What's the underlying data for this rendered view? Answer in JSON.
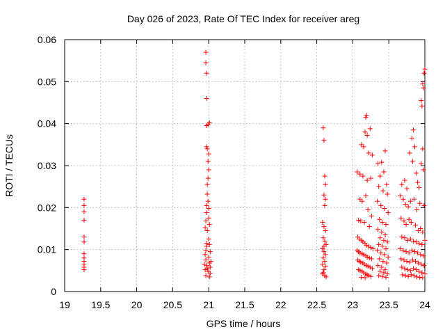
{
  "chart_data": {
    "type": "scatter",
    "title": "Day 026 of 2023, Rate Of TEC Index for receiver areg",
    "xlabel": "GPS time / hours",
    "ylabel": "ROTI / TECUs",
    "xlim": [
      19,
      24
    ],
    "ylim": [
      0,
      0.06
    ],
    "xticks": [
      "19",
      "19.5",
      "20",
      "20.5",
      "21",
      "21.5",
      "22",
      "22.5",
      "23",
      "23.5",
      "24"
    ],
    "yticks": [
      "0",
      "0.01",
      "0.02",
      "0.03",
      "0.04",
      "0.05",
      "0.06"
    ],
    "grid": true,
    "marker": "plus",
    "color": "#ff0000",
    "points": [
      [
        19.27,
        0.022
      ],
      [
        19.27,
        0.0205
      ],
      [
        19.27,
        0.019
      ],
      [
        19.27,
        0.017
      ],
      [
        19.27,
        0.013
      ],
      [
        19.27,
        0.0118
      ],
      [
        19.27,
        0.009
      ],
      [
        19.27,
        0.008
      ],
      [
        19.27,
        0.0072
      ],
      [
        19.27,
        0.0065
      ],
      [
        19.27,
        0.0058
      ],
      [
        19.27,
        0.0052
      ],
      [
        20.96,
        0.057
      ],
      [
        20.96,
        0.0545
      ],
      [
        20.97,
        0.052
      ],
      [
        20.97,
        0.046
      ],
      [
        20.97,
        0.0395
      ],
      [
        20.99,
        0.0398
      ],
      [
        21.01,
        0.0402
      ],
      [
        20.97,
        0.0345
      ],
      [
        20.98,
        0.034
      ],
      [
        21.0,
        0.0328
      ],
      [
        20.99,
        0.031
      ],
      [
        21.0,
        0.029
      ],
      [
        20.99,
        0.027
      ],
      [
        20.98,
        0.0255
      ],
      [
        20.98,
        0.0232
      ],
      [
        20.99,
        0.0215
      ],
      [
        20.97,
        0.0205
      ],
      [
        21.0,
        0.0198
      ],
      [
        20.97,
        0.0188
      ],
      [
        21.0,
        0.0175
      ],
      [
        20.96,
        0.0168
      ],
      [
        21.01,
        0.016
      ],
      [
        20.95,
        0.0152
      ],
      [
        20.98,
        0.0145
      ],
      [
        21.0,
        0.0125
      ],
      [
        21.01,
        0.0112
      ],
      [
        20.97,
        0.0108
      ],
      [
        20.96,
        0.0098
      ],
      [
        21.02,
        0.0095
      ],
      [
        20.95,
        0.0088
      ],
      [
        21.0,
        0.0082
      ],
      [
        20.96,
        0.0075
      ],
      [
        21.01,
        0.0068
      ],
      [
        20.97,
        0.0062
      ],
      [
        21.02,
        0.0058
      ],
      [
        20.95,
        0.0052
      ],
      [
        20.99,
        0.0048
      ],
      [
        21.02,
        0.0044
      ],
      [
        20.96,
        0.0038
      ],
      [
        21.01,
        0.0035
      ],
      [
        20.98,
        0.0055
      ],
      [
        20.94,
        0.0065
      ],
      [
        21.03,
        0.0072
      ],
      [
        20.97,
        0.0115
      ],
      [
        22.59,
        0.039
      ],
      [
        22.6,
        0.036
      ],
      [
        22.61,
        0.0275
      ],
      [
        22.62,
        0.0255
      ],
      [
        22.6,
        0.023
      ],
      [
        22.62,
        0.022
      ],
      [
        22.61,
        0.0205
      ],
      [
        22.58,
        0.0165
      ],
      [
        22.6,
        0.0155
      ],
      [
        22.62,
        0.0145
      ],
      [
        22.59,
        0.0128
      ],
      [
        22.61,
        0.012
      ],
      [
        22.63,
        0.0112
      ],
      [
        22.58,
        0.0102
      ],
      [
        22.6,
        0.0095
      ],
      [
        22.62,
        0.0088
      ],
      [
        22.59,
        0.008
      ],
      [
        22.61,
        0.0072
      ],
      [
        22.58,
        0.0065
      ],
      [
        22.62,
        0.006
      ],
      [
        22.6,
        0.0052
      ],
      [
        22.59,
        0.0045
      ],
      [
        22.61,
        0.0038
      ],
      [
        22.63,
        0.0035
      ],
      [
        22.58,
        0.0042
      ],
      [
        22.6,
        0.0108
      ],
      [
        23.06,
        0.0285
      ],
      [
        23.1,
        0.028
      ],
      [
        23.12,
        0.035
      ],
      [
        23.15,
        0.0345
      ],
      [
        23.18,
        0.0415
      ],
      [
        23.19,
        0.042
      ],
      [
        23.17,
        0.038
      ],
      [
        23.2,
        0.0372
      ],
      [
        23.24,
        0.0388
      ],
      [
        23.22,
        0.033
      ],
      [
        23.27,
        0.0325
      ],
      [
        23.14,
        0.0275
      ],
      [
        23.2,
        0.0265
      ],
      [
        23.25,
        0.027
      ],
      [
        23.1,
        0.022
      ],
      [
        23.13,
        0.0215
      ],
      [
        23.18,
        0.0228
      ],
      [
        23.21,
        0.0195
      ],
      [
        23.26,
        0.018
      ],
      [
        23.08,
        0.017
      ],
      [
        23.11,
        0.0168
      ],
      [
        23.16,
        0.0165
      ],
      [
        23.23,
        0.0155
      ],
      [
        23.07,
        0.013
      ],
      [
        23.09,
        0.0125
      ],
      [
        23.12,
        0.0122
      ],
      [
        23.14,
        0.0118
      ],
      [
        23.17,
        0.0115
      ],
      [
        23.19,
        0.011
      ],
      [
        23.22,
        0.0108
      ],
      [
        23.25,
        0.0105
      ],
      [
        23.28,
        0.0102
      ],
      [
        23.06,
        0.0098
      ],
      [
        23.08,
        0.0095
      ],
      [
        23.1,
        0.0092
      ],
      [
        23.13,
        0.009
      ],
      [
        23.15,
        0.0088
      ],
      [
        23.18,
        0.0085
      ],
      [
        23.2,
        0.0082
      ],
      [
        23.23,
        0.008
      ],
      [
        23.26,
        0.0078
      ],
      [
        23.07,
        0.0075
      ],
      [
        23.09,
        0.0072
      ],
      [
        23.11,
        0.007
      ],
      [
        23.14,
        0.0068
      ],
      [
        23.16,
        0.0065
      ],
      [
        23.19,
        0.0062
      ],
      [
        23.21,
        0.006
      ],
      [
        23.24,
        0.0058
      ],
      [
        23.27,
        0.0055
      ],
      [
        23.08,
        0.0052
      ],
      [
        23.1,
        0.005
      ],
      [
        23.13,
        0.0048
      ],
      [
        23.15,
        0.0045
      ],
      [
        23.18,
        0.0042
      ],
      [
        23.2,
        0.004
      ],
      [
        23.22,
        0.0038
      ],
      [
        23.25,
        0.0036
      ],
      [
        23.12,
        0.0034
      ],
      [
        23.17,
        0.0033
      ],
      [
        23.35,
        0.0305
      ],
      [
        23.4,
        0.0308
      ],
      [
        23.45,
        0.0335
      ],
      [
        23.43,
        0.0285
      ],
      [
        23.38,
        0.0275
      ],
      [
        23.47,
        0.0255
      ],
      [
        23.36,
        0.025
      ],
      [
        23.42,
        0.024
      ],
      [
        23.48,
        0.0232
      ],
      [
        23.34,
        0.0215
      ],
      [
        23.39,
        0.0205
      ],
      [
        23.44,
        0.0198
      ],
      [
        23.49,
        0.0188
      ],
      [
        23.37,
        0.0172
      ],
      [
        23.41,
        0.0165
      ],
      [
        23.46,
        0.016
      ],
      [
        23.35,
        0.0148
      ],
      [
        23.4,
        0.0142
      ],
      [
        23.45,
        0.0135
      ],
      [
        23.38,
        0.0128
      ],
      [
        23.43,
        0.0122
      ],
      [
        23.48,
        0.0118
      ],
      [
        23.36,
        0.0112
      ],
      [
        23.41,
        0.0108
      ],
      [
        23.46,
        0.0102
      ],
      [
        23.34,
        0.0098
      ],
      [
        23.39,
        0.0092
      ],
      [
        23.44,
        0.0088
      ],
      [
        23.49,
        0.0082
      ],
      [
        23.37,
        0.0078
      ],
      [
        23.42,
        0.0072
      ],
      [
        23.47,
        0.0068
      ],
      [
        23.35,
        0.0062
      ],
      [
        23.4,
        0.0058
      ],
      [
        23.45,
        0.0052
      ],
      [
        23.38,
        0.0048
      ],
      [
        23.43,
        0.0045
      ],
      [
        23.48,
        0.0042
      ],
      [
        23.36,
        0.0038
      ],
      [
        23.41,
        0.0036
      ],
      [
        23.46,
        0.0034
      ],
      [
        23.68,
        0.0255
      ],
      [
        23.72,
        0.0265
      ],
      [
        23.75,
        0.0245
      ],
      [
        23.79,
        0.033
      ],
      [
        23.82,
        0.0365
      ],
      [
        23.84,
        0.0385
      ],
      [
        23.86,
        0.0345
      ],
      [
        23.83,
        0.031
      ],
      [
        23.88,
        0.0282
      ],
      [
        23.9,
        0.026
      ],
      [
        23.92,
        0.0248
      ],
      [
        23.95,
        0.0455
      ],
      [
        23.96,
        0.0442
      ],
      [
        23.97,
        0.0495
      ],
      [
        23.98,
        0.0485
      ],
      [
        23.99,
        0.052
      ],
      [
        24.0,
        0.053
      ],
      [
        23.97,
        0.034
      ],
      [
        23.95,
        0.0305
      ],
      [
        23.98,
        0.029
      ],
      [
        23.66,
        0.0228
      ],
      [
        23.7,
        0.022
      ],
      [
        23.73,
        0.0208
      ],
      [
        23.77,
        0.0202
      ],
      [
        23.8,
        0.0215
      ],
      [
        23.85,
        0.022
      ],
      [
        23.89,
        0.0195
      ],
      [
        23.93,
        0.021
      ],
      [
        23.99,
        0.0205
      ],
      [
        23.67,
        0.0175
      ],
      [
        23.71,
        0.0168
      ],
      [
        23.74,
        0.016
      ],
      [
        23.78,
        0.0172
      ],
      [
        23.81,
        0.0165
      ],
      [
        23.87,
        0.0158
      ],
      [
        23.91,
        0.0145
      ],
      [
        23.94,
        0.015
      ],
      [
        23.97,
        0.0142
      ],
      [
        23.68,
        0.013
      ],
      [
        23.72,
        0.0128
      ],
      [
        23.76,
        0.0122
      ],
      [
        23.8,
        0.0125
      ],
      [
        23.84,
        0.012
      ],
      [
        23.88,
        0.0118
      ],
      [
        23.92,
        0.0115
      ],
      [
        23.96,
        0.0112
      ],
      [
        24.0,
        0.0122
      ],
      [
        23.66,
        0.0102
      ],
      [
        23.7,
        0.0098
      ],
      [
        23.74,
        0.0095
      ],
      [
        23.78,
        0.0092
      ],
      [
        23.82,
        0.0098
      ],
      [
        23.86,
        0.0095
      ],
      [
        23.9,
        0.0092
      ],
      [
        23.94,
        0.0088
      ],
      [
        23.98,
        0.0085
      ],
      [
        23.67,
        0.0078
      ],
      [
        23.71,
        0.0075
      ],
      [
        23.75,
        0.0072
      ],
      [
        23.79,
        0.007
      ],
      [
        23.83,
        0.0075
      ],
      [
        23.87,
        0.0072
      ],
      [
        23.91,
        0.0068
      ],
      [
        23.95,
        0.0065
      ],
      [
        23.99,
        0.0062
      ],
      [
        23.68,
        0.0058
      ],
      [
        23.72,
        0.0055
      ],
      [
        23.76,
        0.0052
      ],
      [
        23.8,
        0.005
      ],
      [
        23.84,
        0.0055
      ],
      [
        23.88,
        0.0052
      ],
      [
        23.92,
        0.0048
      ],
      [
        23.96,
        0.0045
      ],
      [
        24.0,
        0.0042
      ],
      [
        23.69,
        0.004
      ],
      [
        23.73,
        0.0038
      ],
      [
        23.77,
        0.0036
      ],
      [
        23.81,
        0.004
      ],
      [
        23.85,
        0.0038
      ],
      [
        23.89,
        0.0035
      ],
      [
        23.93,
        0.0034
      ],
      [
        23.97,
        0.0033
      ]
    ]
  }
}
